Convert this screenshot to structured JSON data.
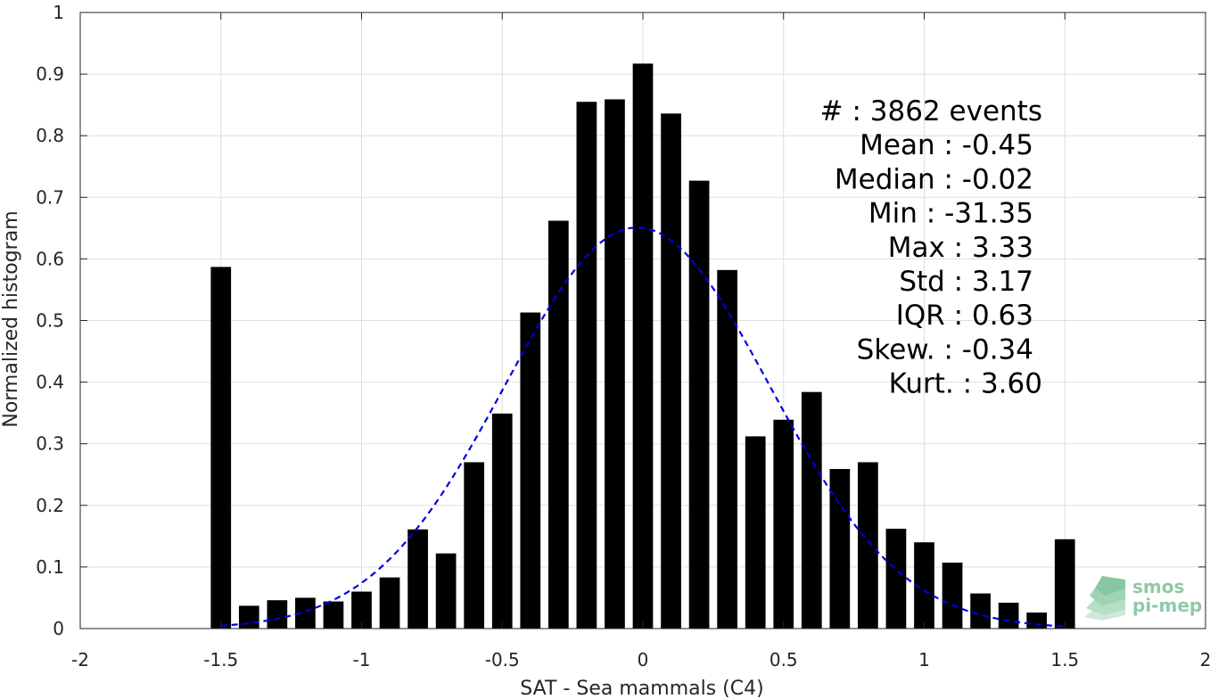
{
  "chart_data": {
    "type": "bar",
    "xlabel": "SAT - Sea mammals (C4)",
    "ylabel": "Normalized histogram",
    "xlim": [
      -2,
      2
    ],
    "ylim": [
      0,
      1
    ],
    "xticks": [
      -2,
      -1.5,
      -1,
      -0.5,
      0,
      0.5,
      1,
      1.5,
      2
    ],
    "xtick_labels": [
      "-2",
      "-1.5",
      "-1",
      "-0.5",
      "0",
      "0.5",
      "1",
      "1.5",
      "2"
    ],
    "yticks": [
      0,
      0.1,
      0.2,
      0.3,
      0.4,
      0.5,
      0.6,
      0.7,
      0.8,
      0.9,
      1
    ],
    "ytick_labels": [
      "0",
      "0.1",
      "0.2",
      "0.3",
      "0.4",
      "0.5",
      "0.6",
      "0.7",
      "0.8",
      "0.9",
      "1"
    ],
    "grid": true,
    "bar_color": "#000000",
    "bin_width": 0.1,
    "bins": [
      {
        "x": -1.5,
        "value": 0.587
      },
      {
        "x": -1.4,
        "value": 0.037
      },
      {
        "x": -1.3,
        "value": 0.046
      },
      {
        "x": -1.2,
        "value": 0.05
      },
      {
        "x": -1.1,
        "value": 0.044
      },
      {
        "x": -1.0,
        "value": 0.06
      },
      {
        "x": -0.9,
        "value": 0.083
      },
      {
        "x": -0.8,
        "value": 0.161
      },
      {
        "x": -0.7,
        "value": 0.122
      },
      {
        "x": -0.6,
        "value": 0.27
      },
      {
        "x": -0.5,
        "value": 0.349
      },
      {
        "x": -0.4,
        "value": 0.513
      },
      {
        "x": -0.3,
        "value": 0.662
      },
      {
        "x": -0.2,
        "value": 0.855
      },
      {
        "x": -0.1,
        "value": 0.859
      },
      {
        "x": 0.0,
        "value": 0.917
      },
      {
        "x": 0.1,
        "value": 0.836
      },
      {
        "x": 0.2,
        "value": 0.727
      },
      {
        "x": 0.3,
        "value": 0.582
      },
      {
        "x": 0.4,
        "value": 0.312
      },
      {
        "x": 0.5,
        "value": 0.339
      },
      {
        "x": 0.6,
        "value": 0.384
      },
      {
        "x": 0.7,
        "value": 0.259
      },
      {
        "x": 0.8,
        "value": 0.27
      },
      {
        "x": 0.9,
        "value": 0.162
      },
      {
        "x": 1.0,
        "value": 0.14
      },
      {
        "x": 1.1,
        "value": 0.107
      },
      {
        "x": 1.2,
        "value": 0.057
      },
      {
        "x": 1.3,
        "value": 0.042
      },
      {
        "x": 1.4,
        "value": 0.026
      },
      {
        "x": 1.5,
        "value": 0.145
      }
    ],
    "fit_curve": {
      "style": "dashed",
      "color": "#0000e6",
      "peak_x": -0.02,
      "peak_y": 0.651,
      "sigma": 0.47,
      "x_range": [
        -1.5,
        1.5
      ]
    },
    "stats": [
      "#  : 3862 events",
      "Mean : -0.45",
      "Median : -0.02",
      "Min : -31.35",
      "Max : 3.33",
      "Std : 3.17",
      "IQR : 0.63",
      "Skew. : -0.34",
      "Kurt. : 3.60"
    ],
    "stats_placement": "top-right"
  },
  "logo": {
    "line1": "smos",
    "line2": "pi-mep",
    "color": "#8fc9a8"
  }
}
